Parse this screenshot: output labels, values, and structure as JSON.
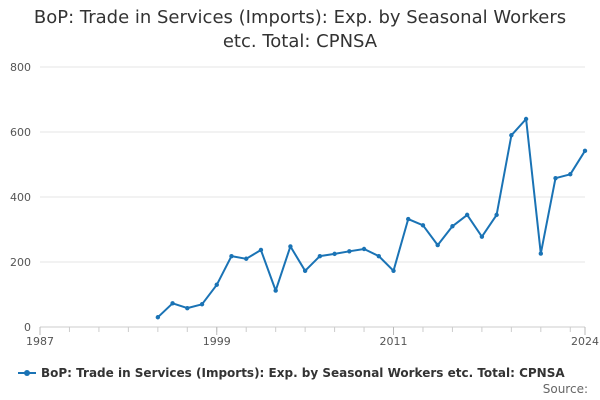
{
  "chart_data": {
    "type": "line",
    "title_lines": [
      "BoP: Trade in Services (Imports): Exp. by Seasonal Workers",
      "etc. Total: CPNSA"
    ],
    "series": [
      {
        "name": "BoP: Trade in Services (Imports): Exp. by Seasonal Workers etc. Total: CPNSA",
        "color": "#1a73b5",
        "x": [
          1995,
          1996,
          1997,
          1998,
          1999,
          2000,
          2001,
          2002,
          2003,
          2004,
          2005,
          2006,
          2007,
          2008,
          2009,
          2010,
          2011,
          2012,
          2013,
          2014,
          2015,
          2016,
          2017,
          2018,
          2019,
          2020,
          2021,
          2022,
          2023,
          2024
        ],
        "values": [
          30,
          73,
          58,
          70,
          130,
          218,
          210,
          237,
          112,
          248,
          173,
          218,
          225,
          233,
          240,
          218,
          173,
          332,
          313,
          252,
          310,
          345,
          278,
          345,
          590,
          640,
          226,
          458,
          470,
          542
        ]
      }
    ],
    "x_ticks": [
      "1987",
      "1999",
      "2011",
      "2024"
    ],
    "y_ticks": [
      "0",
      "200",
      "400",
      "600",
      "800"
    ],
    "xlim": [
      1987,
      2024
    ],
    "ylim": [
      0,
      800
    ],
    "grid": "horizontal",
    "legend_position": "bottom-left",
    "source_label": "Source:"
  }
}
